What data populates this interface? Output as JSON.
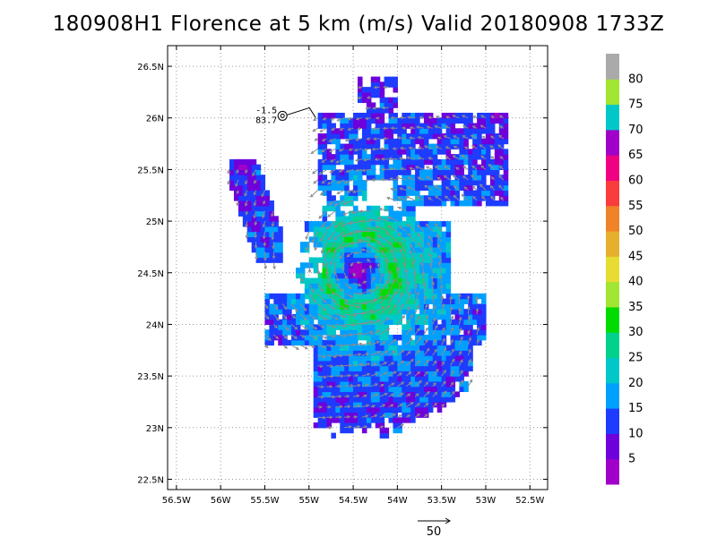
{
  "title": "180908H1 Florence at 5 km (m/s) Valid 20180908  1733Z",
  "chart_data": {
    "type": "heatmap",
    "title": "180908H1 Florence at 5 km (m/s) Valid 20180908  1733Z",
    "xlim": [
      -56.6,
      -52.3
    ],
    "ylim": [
      22.4,
      26.7
    ],
    "x_ticks": [
      {
        "value": -56.5,
        "label": "56.5W"
      },
      {
        "value": -56.0,
        "label": "56W"
      },
      {
        "value": -55.5,
        "label": "55.5W"
      },
      {
        "value": -55.0,
        "label": "55W"
      },
      {
        "value": -54.5,
        "label": "54.5W"
      },
      {
        "value": -54.0,
        "label": "54W"
      },
      {
        "value": -53.5,
        "label": "53.5W"
      },
      {
        "value": -53.0,
        "label": "53W"
      },
      {
        "value": -52.5,
        "label": "52.5W"
      }
    ],
    "y_ticks": [
      {
        "value": 22.5,
        "label": "22.5N"
      },
      {
        "value": 23.0,
        "label": "23N"
      },
      {
        "value": 23.5,
        "label": "23.5N"
      },
      {
        "value": 24.0,
        "label": "24N"
      },
      {
        "value": 24.5,
        "label": "24.5N"
      },
      {
        "value": 25.0,
        "label": "25N"
      },
      {
        "value": 25.5,
        "label": "25.5N"
      },
      {
        "value": 26.0,
        "label": "26N"
      },
      {
        "value": 26.5,
        "label": "26.5N"
      }
    ],
    "grid": true,
    "storm_center": {
      "lon": -54.42,
      "lat": 24.52
    },
    "colorbar": {
      "labels": [
        "5",
        "10",
        "15",
        "20",
        "25",
        "30",
        "35",
        "40",
        "45",
        "50",
        "55",
        "60",
        "65",
        "70",
        "75",
        "80"
      ],
      "colors": [
        "#a000c8",
        "#6e00dc",
        "#1e3cff",
        "#00a0ff",
        "#00c8c8",
        "#00d28c",
        "#00dc00",
        "#a0e632",
        "#e6dc32",
        "#e6af2d",
        "#f08228",
        "#fa3c3c",
        "#f00082",
        "#a000c8",
        "#00c8c8",
        "#a0e632",
        "#aaaaaa"
      ]
    },
    "flight_marker": {
      "line1": "-1.5",
      "line2": "83.7"
    },
    "reference_vector": {
      "label": "50"
    }
  }
}
